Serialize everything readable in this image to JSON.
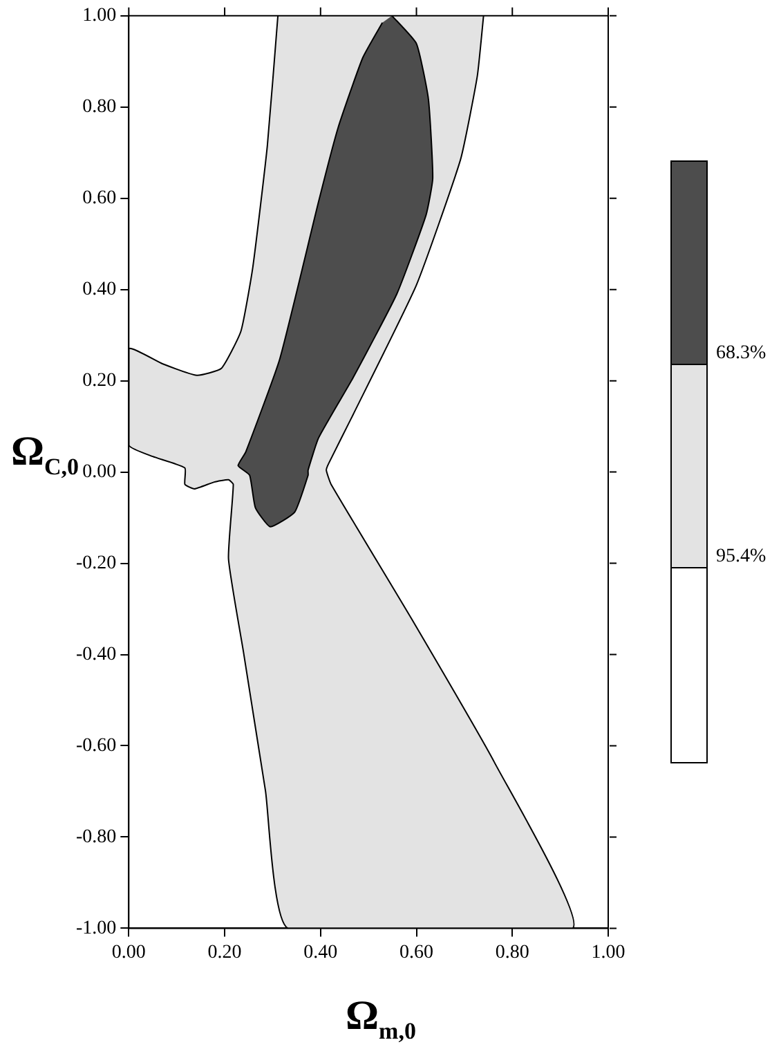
{
  "chart_data": {
    "type": "area",
    "xlabel": "Ω$_{m,0}$",
    "ylabel": "Ω$_{C,0}$",
    "xlim": [
      0,
      1
    ],
    "ylim": [
      -1,
      1
    ],
    "xticks": [
      {
        "value": 0,
        "label": "0.00"
      },
      {
        "value": 0.2,
        "label": "0.20"
      },
      {
        "value": 0.4,
        "label": "0.40"
      },
      {
        "value": 0.6,
        "label": "0.60"
      },
      {
        "value": 0.8,
        "label": "0.80"
      },
      {
        "value": 1,
        "label": "1.00"
      }
    ],
    "yticks": [
      {
        "value": -1,
        "label": "-1.00"
      },
      {
        "value": -0.8,
        "label": "-0.80"
      },
      {
        "value": -0.6,
        "label": "-0.60"
      },
      {
        "value": -0.4,
        "label": "-0.40"
      },
      {
        "value": -0.2,
        "label": "-0.20"
      },
      {
        "value": 0,
        "label": "0.00"
      },
      {
        "value": 0.2,
        "label": "0.20"
      },
      {
        "value": 0.4,
        "label": "0.40"
      },
      {
        "value": 0.6,
        "label": "0.60"
      },
      {
        "value": 0.8,
        "label": "0.80"
      },
      {
        "value": 1,
        "label": "1.00"
      }
    ],
    "grid": false,
    "legend": "right",
    "series": [
      {
        "name": "95.4%",
        "color": "#e3e3e3",
        "x": [
          0.311,
          0.289,
          0.259,
          0.234,
          0.193,
          0.142,
          0.071,
          0,
          0,
          0.05,
          0.117,
          0.117,
          0.137,
          0.178,
          0.208,
          0.218,
          0.208,
          0.239,
          0.285,
          0.332,
          0.926,
          0.763,
          0.59,
          0.422,
          0.412,
          0.417,
          0.468,
          0.6,
          0.692,
          0.727,
          0.74
        ],
        "values": [
          1,
          0.715,
          0.451,
          0.309,
          0.227,
          0.212,
          0.237,
          0.27,
          0.059,
          0.034,
          0.009,
          -0.027,
          -0.037,
          -0.022,
          -0.017,
          -0.027,
          -0.19,
          -0.393,
          -0.698,
          -1,
          -1,
          -0.637,
          -0.322,
          -0.027,
          0.004,
          0.019,
          0.126,
          0.41,
          0.685,
          0.868,
          1
        ]
      },
      {
        "name": "68.3%",
        "color": "#4d4d4d",
        "x": [
          0.549,
          0.6,
          0.625,
          0.634,
          0.62,
          0.559,
          0.468,
          0.396,
          0.374,
          0.374,
          0.346,
          0.295,
          0.264,
          0.252,
          0.228,
          0.244,
          0.315,
          0.396,
          0.437,
          0.488,
          0.529
        ],
        "values": [
          1,
          0.939,
          0.817,
          0.644,
          0.563,
          0.39,
          0.207,
          0.075,
          0.004,
          -0.007,
          -0.088,
          -0.12,
          -0.078,
          -0.007,
          0.014,
          0.044,
          0.248,
          0.593,
          0.756,
          0.908,
          0.985
        ]
      }
    ]
  }
}
